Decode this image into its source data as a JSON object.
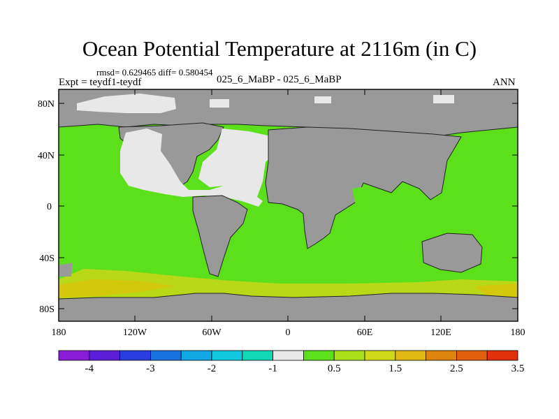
{
  "title": "Ocean Potential Temperature at 2116m (in C)",
  "stats": "rmsd= 0.629465 diff= 0.580454",
  "expt": "Expt = teydf1-teydf",
  "subtitle": "025_6_MaBP - 025_6_MaBP",
  "season": "ANN",
  "colors": {
    "land": "#999999",
    "ocean": "#5ce01c",
    "light": "#e8e8e8",
    "warm": "#b8d818",
    "warm2": "#d4c80c"
  },
  "lat_ticks": [
    "80N",
    "40N",
    "0",
    "40S",
    "80S"
  ],
  "lon_ticks": [
    "180",
    "120W",
    "60W",
    "0",
    "60E",
    "120E",
    "180"
  ],
  "colorbar": {
    "colors": [
      "#8a1ed8",
      "#5a1ed8",
      "#2a3ee0",
      "#1a72e0",
      "#12a8e6",
      "#12c8e0",
      "#12d8b8",
      "#e8e8e8",
      "#5ce01c",
      "#a8e01a",
      "#d0d818",
      "#e0b814",
      "#e08410",
      "#e0600e",
      "#e0300c"
    ],
    "labels": [
      "-4",
      "-3",
      "-2",
      "-1",
      "0.5",
      "1.5",
      "2.5",
      "3.5"
    ]
  }
}
